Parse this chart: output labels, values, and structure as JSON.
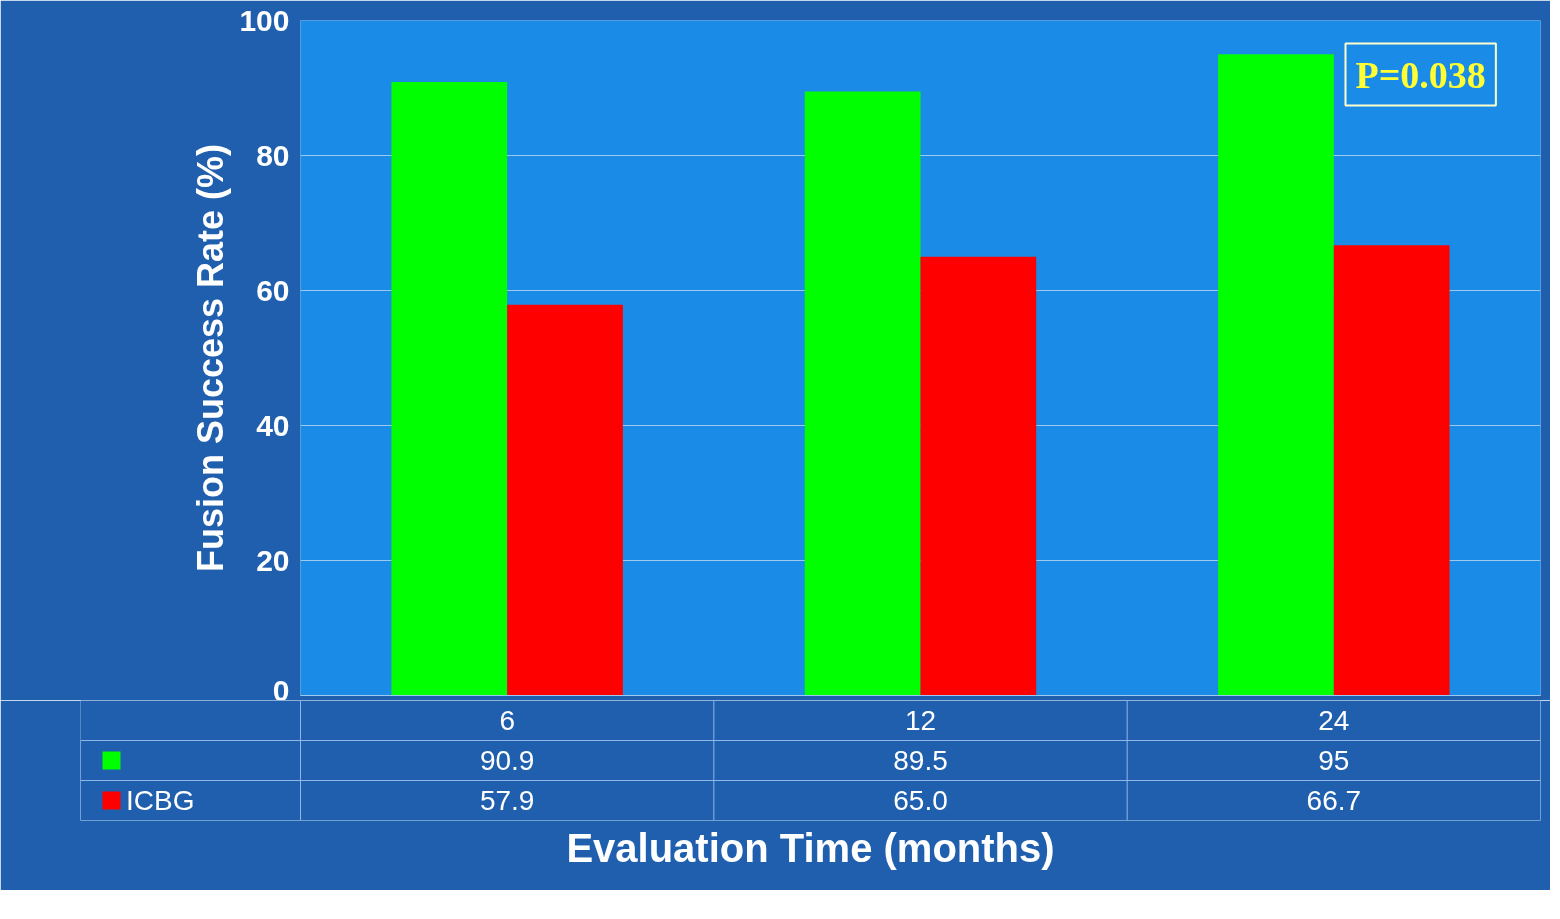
{
  "chart_data": {
    "type": "bar",
    "ylabel": "Fusion Success Rate (%)",
    "xlabel": "Evaluation Time (months)",
    "categories": [
      "6",
      "12",
      "24"
    ],
    "series": [
      {
        "color": "#00ff00",
        "values": [
          90.9,
          89.5,
          95
        ],
        "value_labels": [
          "90.9",
          "89.5",
          "95"
        ]
      },
      {
        "name": "ICBG",
        "color": "#ff0000",
        "values": [
          57.9,
          65.0,
          66.7
        ],
        "value_labels": [
          "57.9",
          "65.0",
          "66.7"
        ]
      }
    ],
    "ylim": [
      0,
      100
    ],
    "yticks": [
      0,
      20,
      40,
      60,
      80,
      100
    ],
    "grid": "y",
    "legend": "bottom",
    "annotations": [
      "P=0.038"
    ]
  }
}
